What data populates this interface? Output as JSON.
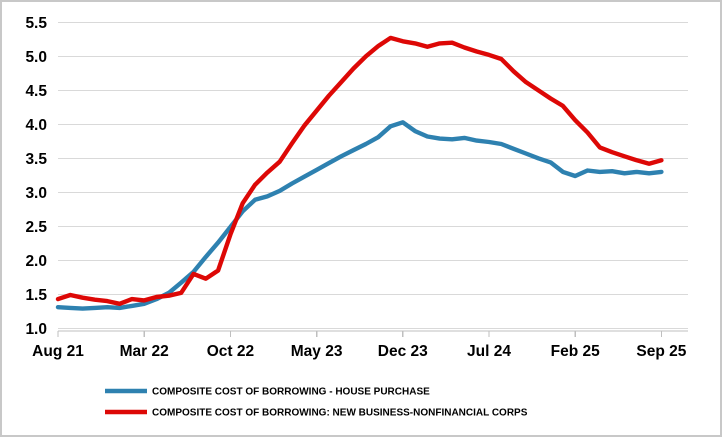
{
  "chart_data": {
    "type": "line",
    "title": "",
    "xlabel": "",
    "ylabel": "",
    "ylim": [
      1.0,
      5.5
    ],
    "y_tick_labels": [
      "1.0",
      "1.5",
      "2.0",
      "2.5",
      "3.0",
      "3.5",
      "4.0",
      "4.5",
      "5.0",
      "5.5"
    ],
    "x_tick_labels": [
      "Aug 21",
      "Mar 22",
      "Oct 22",
      "May 23",
      "Dec 23",
      "Jul 24",
      "Feb 25",
      "Sep 25"
    ],
    "x_tick_month_indices": [
      0,
      7,
      14,
      21,
      28,
      35,
      42,
      49
    ],
    "grid": "horizontal",
    "legend_position": "bottom-left",
    "x": [
      "Aug 21",
      "Sep 21",
      "Oct 21",
      "Nov 21",
      "Dec 21",
      "Jan 22",
      "Feb 22",
      "Mar 22",
      "Apr 22",
      "May 22",
      "Jun 22",
      "Jul 22",
      "Aug 22",
      "Sep 22",
      "Oct 22",
      "Nov 22",
      "Dec 22",
      "Jan 23",
      "Feb 23",
      "Mar 23",
      "Apr 23",
      "May 23",
      "Jun 23",
      "Jul 23",
      "Aug 23",
      "Sep 23",
      "Oct 23",
      "Nov 23",
      "Dec 23",
      "Jan 24",
      "Feb 24",
      "Mar 24",
      "Apr 24",
      "May 24",
      "Jun 24",
      "Jul 24",
      "Aug 24",
      "Sep 24",
      "Oct 24",
      "Nov 24",
      "Dec 24",
      "Jan 25",
      "Feb 25",
      "Mar 25",
      "Apr 25",
      "May 25",
      "Jun 25",
      "Jul 25",
      "Aug 25",
      "Sep 25"
    ],
    "series": [
      {
        "name": "COMPOSITE COST OF BORROWING - HOUSE PURCHASE",
        "color": "#2E81B0",
        "values": [
          1.31,
          1.3,
          1.29,
          1.3,
          1.31,
          1.3,
          1.33,
          1.36,
          1.43,
          1.52,
          1.67,
          1.83,
          2.05,
          2.26,
          2.49,
          2.72,
          2.89,
          2.94,
          3.02,
          3.13,
          3.23,
          3.33,
          3.43,
          3.53,
          3.62,
          3.71,
          3.81,
          3.97,
          4.03,
          3.9,
          3.82,
          3.79,
          3.78,
          3.8,
          3.76,
          3.74,
          3.71,
          3.64,
          3.57,
          3.5,
          3.44,
          3.3,
          3.24,
          3.32,
          3.3,
          3.31,
          3.28,
          3.3,
          3.28,
          3.3
        ]
      },
      {
        "name": "COMPOSITE COST OF BORROWING: NEW BUSINESS-NONFINANCIAL CORPS",
        "color": "#DD0806",
        "values": [
          1.43,
          1.49,
          1.45,
          1.42,
          1.4,
          1.36,
          1.43,
          1.41,
          1.46,
          1.48,
          1.52,
          1.8,
          1.73,
          1.85,
          2.38,
          2.84,
          3.11,
          3.29,
          3.45,
          3.72,
          3.98,
          4.2,
          4.42,
          4.62,
          4.82,
          5.0,
          5.15,
          5.27,
          5.22,
          5.19,
          5.14,
          5.19,
          5.2,
          5.13,
          5.07,
          5.02,
          4.96,
          4.78,
          4.62,
          4.5,
          4.38,
          4.27,
          4.06,
          3.88,
          3.66,
          3.59,
          3.53,
          3.47,
          3.42,
          3.47
        ]
      }
    ],
    "style_colors": {
      "gridline": "#D9D9D9",
      "axis": "#BFBFBF",
      "border": "#C8C8C8",
      "text": "#000000",
      "background": "#FFFFFF"
    }
  }
}
